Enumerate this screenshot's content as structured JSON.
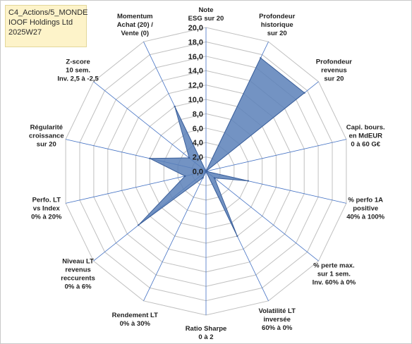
{
  "info": {
    "line1": "C4_Actions/5_MONDE",
    "line2": "IOOF Holdings Ltd",
    "line3": "2025W27"
  },
  "colors": {
    "grid": "#c0c0c0",
    "spoke": "#4472c4",
    "fill": "#5b80b8",
    "stroke": "#3b5f9a",
    "info_bg": "#fdf3c9"
  },
  "chart_data": {
    "type": "radar",
    "rmin": 0,
    "rmax": 20,
    "ticks": [
      "0,0",
      "2,0",
      "4,0",
      "6,0",
      "8,0",
      "10,0",
      "12,0",
      "14,0",
      "16,0",
      "18,0",
      "20,0"
    ],
    "axes": [
      [
        "Note",
        "ESG sur 20"
      ],
      [
        "Profondeur",
        "historique",
        "sur 20"
      ],
      [
        "Profondeur",
        "revenus",
        "sur 20"
      ],
      [
        "Capi. bours.",
        "en MdEUR",
        "0 à 60 G€"
      ],
      [
        "% perfo 1A",
        "positive",
        "40% à 100%"
      ],
      [
        "% perte max.",
        "sur 1 sem.",
        "Inv. 60% à 0%"
      ],
      [
        "Volatilité LT",
        "inversée",
        "60% à 0%"
      ],
      [
        "Ratio Sharpe",
        "0 à 2"
      ],
      [
        "Rendement LT",
        "0% à 30%"
      ],
      [
        "Niveau LT",
        "revenus",
        "reccurents",
        "0% à 6%"
      ],
      [
        "Perfo. LT",
        "vs Index",
        "0% à 20%"
      ],
      [
        "Régularité",
        "croissance",
        "sur 20"
      ],
      [
        "Z-score",
        "10 sem.",
        "Inv. 2,5 à -2,5"
      ],
      [
        "Momentum",
        "Achat (20) /",
        "Vente (0)"
      ]
    ],
    "values": [
      0,
      17.5,
      17.5,
      0,
      6,
      1.5,
      10,
      0,
      1,
      12,
      3,
      8,
      3,
      10
    ]
  }
}
